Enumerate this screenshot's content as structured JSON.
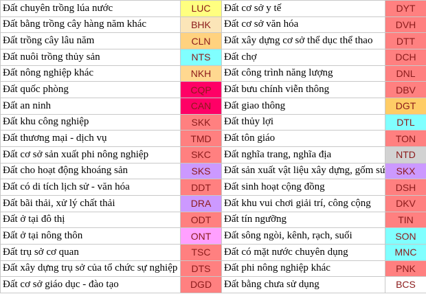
{
  "table": {
    "rows": [
      [
        {
          "name": "Đất chuyên trồng lúa nước",
          "code": "LUC",
          "color": "#ffff80"
        },
        {
          "name": "Đất cơ sở y tế",
          "code": "DYT",
          "color": "#ff8080"
        }
      ],
      [
        {
          "name": "Đất bằng trồng cây hàng năm khác",
          "code": "BHK",
          "color": "#fbe5b8"
        },
        {
          "name": "Đất cơ sở văn hóa",
          "code": "DVH",
          "color": "#ff8080"
        }
      ],
      [
        {
          "name": "Đất trồng cây lâu năm",
          "code": "CLN",
          "color": "#ffd27f"
        },
        {
          "name": "Đất xây dựng cơ sở thể dục thể thao",
          "code": "DTT",
          "color": "#ff8080"
        }
      ],
      [
        {
          "name": "Đất nuôi trồng thủy sản",
          "code": "NTS",
          "color": "#80ffff"
        },
        {
          "name": "Đất chợ",
          "code": "DCH",
          "color": "#ff8080"
        }
      ],
      [
        {
          "name": "Đất nông nghiệp khác",
          "code": "NKH",
          "color": "#ffd890"
        },
        {
          "name": "Đất công trình năng lượng",
          "code": "DNL",
          "color": "#ff8080"
        }
      ],
      [
        {
          "name": "Đất quốc phòng",
          "code": "CQP",
          "color": "#ff0066"
        },
        {
          "name": "Đất bưu chính viễn thông",
          "code": "DBV",
          "color": "#ff8080"
        }
      ],
      [
        {
          "name": "Đất an ninh",
          "code": "CAN",
          "color": "#ff0066"
        },
        {
          "name": "Đất giao thông",
          "code": "DGT",
          "color": "#ffcc66"
        }
      ],
      [
        {
          "name": "Đất khu công nghiệp",
          "code": "SKK",
          "color": "#ff8080"
        },
        {
          "name": "Đất thủy lợi",
          "code": "DTL",
          "color": "#80ffff"
        }
      ],
      [
        {
          "name": "Đất thương mại - dịch vụ",
          "code": "TMD",
          "color": "#ff8080"
        },
        {
          "name": "Đất tôn giáo",
          "code": "TON",
          "color": "#ff8080"
        }
      ],
      [
        {
          "name": "Đất cơ sở sản xuất phi nông nghiệp",
          "code": "SKC",
          "color": "#ff8080"
        },
        {
          "name": "Đất nghĩa trang, nghĩa địa",
          "code": "NTD",
          "color": "#d2d2d2"
        }
      ],
      [
        {
          "name": "Đất cho hoạt động khoáng sản",
          "code": "SKS",
          "color": "#cc99ff"
        },
        {
          "name": "Đất sản xuất vật liệu xây dựng, gốm sứ",
          "code": "SKX",
          "color": "#cc99ff"
        }
      ],
      [
        {
          "name": "Đất có di tích lịch sử - văn hóa",
          "code": "DDT",
          "color": "#ff8080"
        },
        {
          "name": "Đất sinh hoạt cộng đồng",
          "code": "DSH",
          "color": "#ff8080"
        }
      ],
      [
        {
          "name": "Đất bãi thải, xử lý chất thải",
          "code": "DRA",
          "color": "#cc99ff"
        },
        {
          "name": "Đất khu vui chơi giải trí, công cộng",
          "code": "DKV",
          "color": "#ff8080"
        }
      ],
      [
        {
          "name": "Đất ở tại đô thị",
          "code": "ODT",
          "color": "#ff8080"
        },
        {
          "name": "Đất tín ngưỡng",
          "code": "TIN",
          "color": "#ff8080"
        }
      ],
      [
        {
          "name": "Đất ở tại nông thôn",
          "code": "ONT",
          "color": "#ffa0ff"
        },
        {
          "name": "Đất sông ngòi, kênh, rạch, suối",
          "code": "SON",
          "color": "#80ffff"
        }
      ],
      [
        {
          "name": "Đất trụ sở cơ quan",
          "code": "TSC",
          "color": "#ff8080"
        },
        {
          "name": "Đất có mặt nước chuyên dụng",
          "code": "MNC",
          "color": "#80ffff"
        }
      ],
      [
        {
          "name": "Đất xây dựng trụ sở của tổ chức sự nghiệp",
          "code": "DTS",
          "color": "#ff8080"
        },
        {
          "name": "Đất phi nông nghiệp khác",
          "code": "PNK",
          "color": "#ff8080"
        }
      ],
      [
        {
          "name": "Đất cơ sở giáo dục - đào tạo",
          "code": "DGD",
          "color": "#ff8080"
        },
        {
          "name": "Đất bằng chưa sử dụng",
          "code": "BCS",
          "color": "#ffffff"
        }
      ]
    ]
  }
}
